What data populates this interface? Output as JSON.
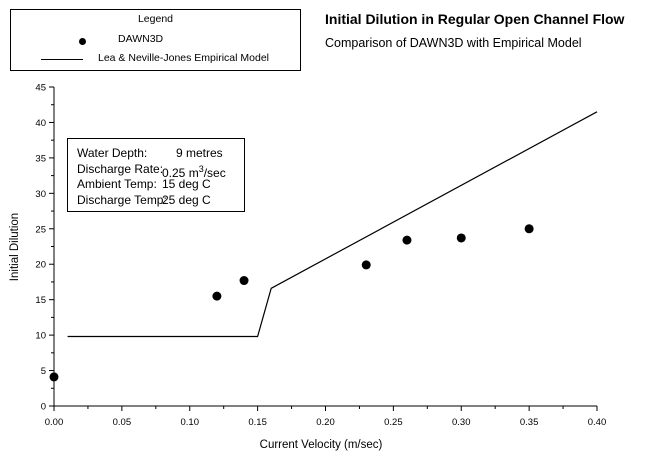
{
  "chart_data": {
    "type": "scatter",
    "title": "Initial Dilution in Regular Open Channel Flow",
    "subtitle": "Comparison of DAWN3D with Empirical Model",
    "xlabel": "Current Velocity (m/sec)",
    "ylabel": "Initial Dilution",
    "xlim": [
      0.0,
      0.4
    ],
    "ylim": [
      0,
      45
    ],
    "x_ticks": [
      "0.00",
      "0.05",
      "0.10",
      "0.15",
      "0.20",
      "0.25",
      "0.30",
      "0.35",
      "0.40"
    ],
    "y_ticks": [
      "0",
      "5",
      "10",
      "15",
      "20",
      "25",
      "30",
      "35",
      "40",
      "45"
    ],
    "grid": false,
    "legend": {
      "title": "Legend",
      "placement": "top-left",
      "entries": [
        {
          "label": "DAWN3D",
          "marker": "circle"
        },
        {
          "label": "Lea & Neville-Jones Empirical Model",
          "marker": "line"
        }
      ]
    },
    "series": [
      {
        "name": "DAWN3D",
        "style": "points",
        "points": [
          [
            0.0,
            4.1
          ],
          [
            0.12,
            15.5
          ],
          [
            0.14,
            17.7
          ],
          [
            0.23,
            19.9
          ],
          [
            0.26,
            23.4
          ],
          [
            0.3,
            23.7
          ],
          [
            0.35,
            25.0
          ]
        ]
      },
      {
        "name": "Lea & Neville-Jones Empirical Model",
        "style": "line",
        "points": [
          [
            0.01,
            9.8
          ],
          [
            0.15,
            9.8
          ],
          [
            0.16,
            16.6
          ],
          [
            0.4,
            41.5
          ]
        ]
      }
    ],
    "annotation": {
      "rows": [
        {
          "key": "Water Depth:",
          "value": "9 metres"
        },
        {
          "key": "Discharge Rate:",
          "value": "0.25 m",
          "sup": "3",
          "value_suffix": "/sec"
        },
        {
          "key": "Ambient Temp:",
          "value": "15 deg C"
        },
        {
          "key": "Discharge Temp:",
          "value": "25 deg C"
        }
      ]
    }
  }
}
